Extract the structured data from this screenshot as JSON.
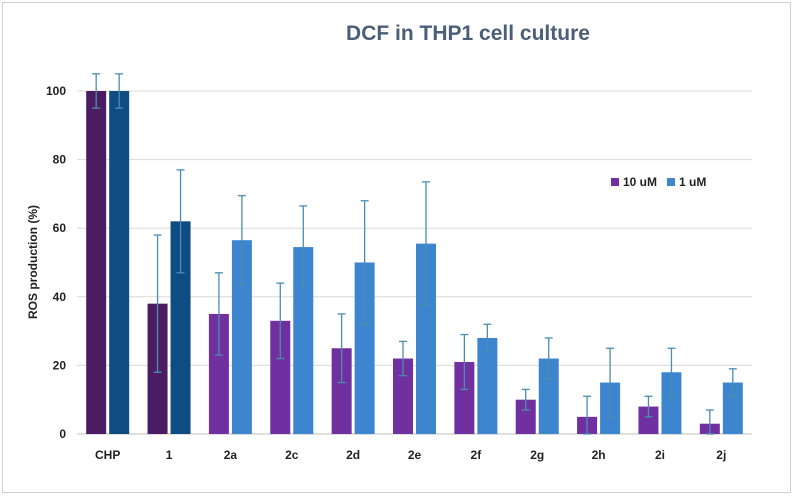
{
  "chart_data": {
    "type": "bar",
    "title": "DCF in THP1 cell culture",
    "xlabel": "",
    "ylabel": "ROS production (%)",
    "ylim": [
      0,
      100
    ],
    "yticks": [
      0,
      20,
      40,
      60,
      80,
      100
    ],
    "grid": true,
    "legend_position": "right",
    "categories": [
      "CHP",
      "1",
      "2a",
      "2c",
      "2d",
      "2e",
      "2f",
      "2g",
      "2h",
      "2i",
      "2j"
    ],
    "series": [
      {
        "name": "10 uM",
        "color": "#7030a0",
        "special_colors": {
          "CHP": "#4b1c61",
          "1": "#4b1c61"
        },
        "values": [
          100,
          38,
          35,
          33,
          25,
          22,
          21,
          10,
          5,
          8,
          3
        ],
        "errors": [
          5,
          20,
          12,
          11,
          10,
          5,
          8,
          3,
          6,
          3,
          4
        ]
      },
      {
        "name": "1 uM",
        "color": "#3d86cf",
        "special_colors": {
          "CHP": "#0f4c81",
          "1": "#0f4c81"
        },
        "values": [
          100,
          62,
          56.5,
          54.5,
          50,
          55.5,
          28,
          22,
          15,
          18,
          15
        ],
        "errors": [
          5,
          15,
          13,
          12,
          18,
          18,
          4,
          6,
          10,
          7,
          4
        ]
      }
    ]
  }
}
